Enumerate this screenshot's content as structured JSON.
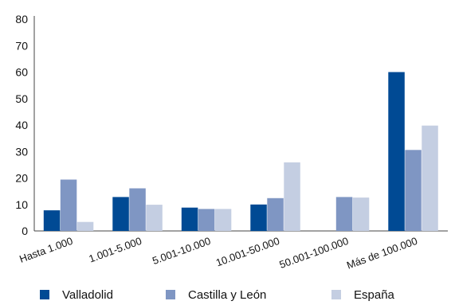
{
  "chart_data": {
    "type": "bar",
    "categories": [
      "Hasta 1.000",
      "1.001-5.000",
      "5.001-10.000",
      "10.001-50.000",
      "50.001-100.000",
      "Más de 100.000"
    ],
    "series": [
      {
        "name": "Valladolid",
        "color": "#004a94",
        "values": [
          7.8,
          12.8,
          8.8,
          10.0,
          null,
          60.0
        ]
      },
      {
        "name": "Castilla y León",
        "color": "#7f96c3",
        "values": [
          19.4,
          16.1,
          8.3,
          12.4,
          12.8,
          30.6
        ]
      },
      {
        "name": "España",
        "color": "#c4cee2",
        "values": [
          3.4,
          9.9,
          8.3,
          25.9,
          12.6,
          39.8
        ]
      }
    ],
    "yticks": [
      0,
      10,
      20,
      30,
      40,
      50,
      60,
      70,
      80
    ],
    "ylim": [
      0,
      80
    ],
    "title": "",
    "xlabel": "",
    "ylabel": "",
    "grid": false,
    "legend_position": "bottom"
  }
}
